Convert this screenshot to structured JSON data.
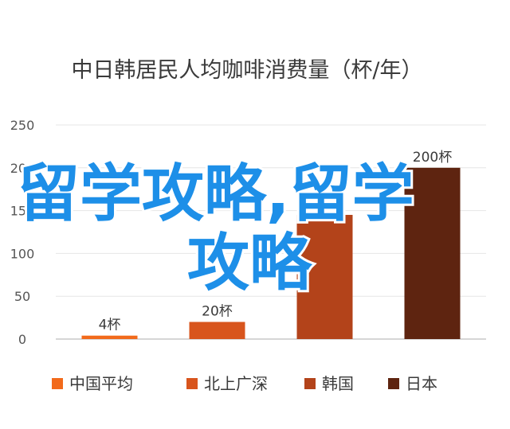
{
  "chart_data": {
    "type": "bar",
    "title": "中日韩居民人均咖啡消费量（杯/年）",
    "xlabel": "",
    "ylabel": "",
    "ylim": [
      0,
      250
    ],
    "yticks": [
      "0",
      "50",
      "100",
      "150",
      "200",
      "250"
    ],
    "grid": true,
    "legend_position": "bottom",
    "bars": [
      {
        "name": "中国平均",
        "value": 4,
        "label": "4杯",
        "color": "#f26a1b"
      },
      {
        "name": "北上广深",
        "value": 20,
        "label": "20杯",
        "color": "#d8551d"
      },
      {
        "name": "韩国",
        "value": 145,
        "label": "145杯",
        "color": "#b3431a"
      },
      {
        "name": "日本",
        "value": 200,
        "label": "200杯",
        "color": "#5e2410"
      }
    ]
  },
  "watermark": {
    "line1": "留学攻略,留学",
    "line2": "攻略",
    "color": "#1d8fe8"
  }
}
